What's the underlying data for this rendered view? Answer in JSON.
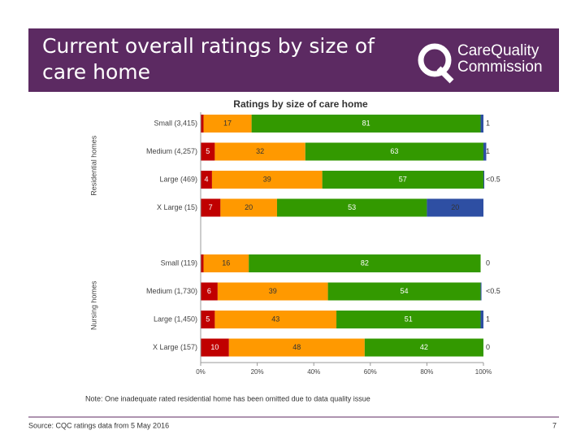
{
  "slide": {
    "title_lines": [
      "Current overall ratings by size of",
      "care home"
    ],
    "logo_lines": [
      "CareQuality",
      "Commission"
    ],
    "note": "Note: One inadequate rated residential home has been omitted due to data quality issue",
    "source": "Source: CQC ratings data from 5 May 2016",
    "page_number": "7"
  },
  "chart_data": {
    "type": "stacked-bar-horizontal",
    "title": "Ratings by size of care home",
    "group_labels": [
      "Residential homes",
      "Nursing homes"
    ],
    "categories": [
      "Small (3,415)",
      "Medium (4,257)",
      "Large (469)",
      "X Large (15)",
      "Small (119)",
      "Medium (1,730)",
      "Large (1,450)",
      "X Large (157)"
    ],
    "series": [
      {
        "color": "#c00000",
        "label_color": "#ffffff",
        "values": [
          1,
          5,
          4,
          7,
          1,
          6,
          5,
          10
        ]
      },
      {
        "color": "#ff9900",
        "label_color": "#333333",
        "values": [
          17,
          32,
          39,
          20,
          16,
          39,
          43,
          48
        ]
      },
      {
        "color": "#339900",
        "label_color": "#ffffff",
        "values": [
          81,
          63,
          57,
          53,
          82,
          54,
          51,
          42
        ]
      },
      {
        "color": "#2e4fa3",
        "label_color": "#333333",
        "values": [
          1,
          1,
          0.3,
          20,
          0,
          0.3,
          1,
          0
        ],
        "value_labels": [
          "1",
          "1",
          "<0.5",
          "20",
          "0",
          "<0.5",
          "1",
          "0"
        ]
      }
    ],
    "xlim": [
      0,
      100
    ],
    "xticks": [
      {
        "value": 0,
        "label": "0%"
      },
      {
        "value": 20,
        "label": "20%"
      },
      {
        "value": 40,
        "label": "40%"
      },
      {
        "value": 60,
        "label": "60%"
      },
      {
        "value": 80,
        "label": "80%"
      },
      {
        "value": 100,
        "label": "100%"
      }
    ]
  }
}
